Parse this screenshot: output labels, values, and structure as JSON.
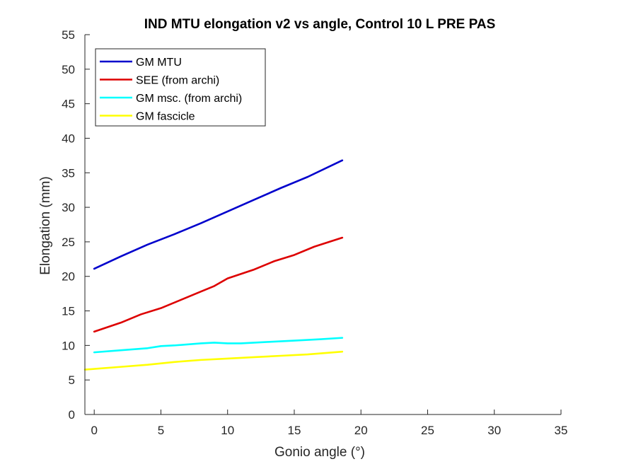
{
  "chart_data": {
    "type": "line",
    "title": "IND MTU elongation v2 vs angle, Control 10 L PRE PAS",
    "xlabel": "Gonio angle (°)",
    "ylabel": "Elongation (mm)",
    "xlim": [
      -0.7,
      35
    ],
    "ylim": [
      0,
      55
    ],
    "xticks": [
      0,
      5,
      10,
      15,
      20,
      25,
      30,
      35
    ],
    "yticks": [
      0,
      5,
      10,
      15,
      20,
      25,
      30,
      35,
      40,
      45,
      50,
      55
    ],
    "xtick_labels": [
      "0",
      "5",
      "10",
      "15",
      "20",
      "25",
      "30",
      "35"
    ],
    "ytick_labels": [
      "0",
      "5",
      "10",
      "15",
      "20",
      "25",
      "30",
      "35",
      "40",
      "45",
      "50",
      "55"
    ],
    "grid": false,
    "legend_position": "top-left",
    "series": [
      {
        "name": "GM MTU",
        "color": "#0000cc",
        "x": [
          0,
          2,
          4,
          6,
          8,
          10,
          12,
          14,
          16,
          18.6
        ],
        "y": [
          21.1,
          22.9,
          24.6,
          26.1,
          27.7,
          29.4,
          31.1,
          32.8,
          34.4,
          36.8
        ]
      },
      {
        "name": "SEE (from archi)",
        "color": "#dd0000",
        "x": [
          0,
          2,
          3.5,
          5,
          6.5,
          8,
          9,
          10,
          12,
          13.5,
          15,
          16.5,
          18.6
        ],
        "y": [
          12,
          13.3,
          14.5,
          15.4,
          16.6,
          17.8,
          18.6,
          19.7,
          21,
          22.2,
          23.1,
          24.3,
          25.6
        ]
      },
      {
        "name": "GM msc. (from archi)",
        "color": "#00ffff",
        "x": [
          0,
          2,
          4,
          5,
          6,
          8,
          9,
          10,
          11,
          13,
          15,
          17,
          18.6
        ],
        "y": [
          9,
          9.3,
          9.6,
          9.9,
          10,
          10.3,
          10.4,
          10.3,
          10.3,
          10.5,
          10.7,
          10.9,
          11.1
        ]
      },
      {
        "name": "GM fascicle",
        "color": "#ffff00",
        "x": [
          -0.7,
          0,
          2,
          4,
          6,
          8,
          10,
          12,
          14,
          16,
          18.6
        ],
        "y": [
          6.5,
          6.6,
          6.9,
          7.2,
          7.6,
          7.9,
          8.1,
          8.3,
          8.5,
          8.7,
          9.1
        ]
      }
    ]
  }
}
